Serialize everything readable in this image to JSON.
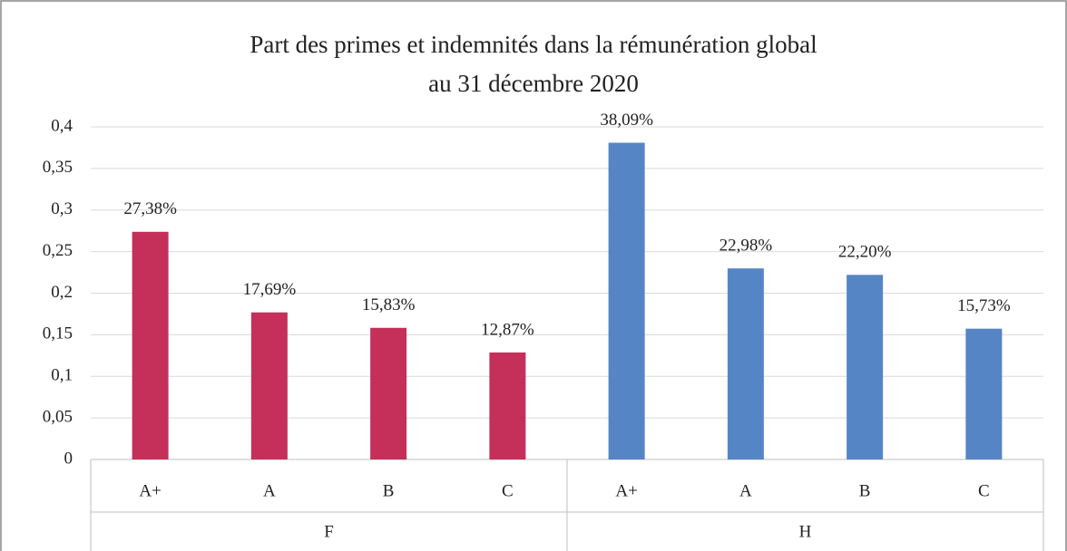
{
  "chart_data": {
    "type": "bar",
    "title": [
      "Part des primes et indemnités dans la rémunération global",
      "au 31 décembre 2020"
    ],
    "groups": [
      {
        "name": "F",
        "color": "#c4305a",
        "categories": [
          "A+",
          "A",
          "B",
          "C"
        ],
        "values": [
          0.2738,
          0.1769,
          0.1583,
          0.1287
        ],
        "value_labels": [
          "27,38%",
          "17,69%",
          "15,83%",
          "12,87%"
        ]
      },
      {
        "name": "H",
        "color": "#5585c5",
        "categories": [
          "A+",
          "A",
          "B",
          "C"
        ],
        "values": [
          0.3809,
          0.2298,
          0.222,
          0.1573
        ],
        "value_labels": [
          "38,09%",
          "22,98%",
          "22,20%",
          "15,73%"
        ]
      }
    ],
    "ylim": [
      0,
      0.4
    ],
    "yticks": [
      0,
      {
        "value": 0.05,
        "label": "0,05"
      },
      {
        "value": 0.1,
        "label": "0,1"
      },
      {
        "value": 0.15,
        "label": "0,15"
      },
      {
        "value": 0.2,
        "label": "0,2"
      },
      {
        "value": 0.25,
        "label": "0,25"
      },
      {
        "value": 0.3,
        "label": "0,3"
      },
      {
        "value": 0.35,
        "label": "0,35"
      },
      {
        "value": 0.4,
        "label": "0,4"
      }
    ],
    "grid": true
  }
}
